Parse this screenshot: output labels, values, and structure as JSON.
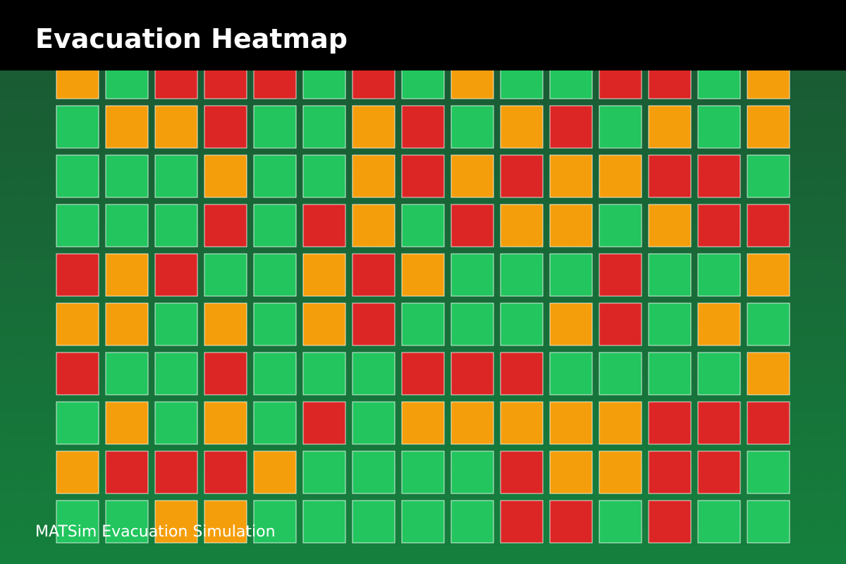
{
  "header": {
    "title": "Evacuation Heatmap"
  },
  "footer": {
    "text": "MATSim Evacuation Simulation"
  },
  "grid": {
    "cells": [
      [
        "#f59e0b",
        "#22c55e",
        "#dc2626",
        "#dc2626",
        "#dc2626",
        "#22c55e",
        "#dc2626",
        "#22c55e",
        "#f59e0b",
        "#22c55e",
        "#22c55e",
        "#dc2626",
        "#dc2626",
        "#22c55e",
        "#f59e0b"
      ],
      [
        "#22c55e",
        "#f59e0b",
        "#f59e0b",
        "#dc2626",
        "#22c55e",
        "#22c55e",
        "#f59e0b",
        "#dc2626",
        "#22c55e",
        "#f59e0b",
        "#dc2626",
        "#22c55e",
        "#f59e0b",
        "#22c55e",
        "#f59e0b"
      ],
      [
        "#22c55e",
        "#22c55e",
        "#22c55e",
        "#f59e0b",
        "#22c55e",
        "#22c55e",
        "#f59e0b",
        "#dc2626",
        "#f59e0b",
        "#dc2626",
        "#f59e0b",
        "#f59e0b",
        "#dc2626",
        "#dc2626",
        "#22c55e"
      ],
      [
        "#22c55e",
        "#22c55e",
        "#22c55e",
        "#dc2626",
        "#22c55e",
        "#dc2626",
        "#f59e0b",
        "#22c55e",
        "#dc2626",
        "#f59e0b",
        "#f59e0b",
        "#22c55e",
        "#f59e0b",
        "#dc2626",
        "#dc2626"
      ],
      [
        "#dc2626",
        "#f59e0b",
        "#dc2626",
        "#22c55e",
        "#22c55e",
        "#f59e0b",
        "#dc2626",
        "#f59e0b",
        "#22c55e",
        "#22c55e",
        "#22c55e",
        "#dc2626",
        "#22c55e",
        "#22c55e",
        "#f59e0b"
      ],
      [
        "#f59e0b",
        "#f59e0b",
        "#22c55e",
        "#f59e0b",
        "#22c55e",
        "#f59e0b",
        "#dc2626",
        "#22c55e",
        "#22c55e",
        "#22c55e",
        "#f59e0b",
        "#dc2626",
        "#22c55e",
        "#f59e0b",
        "#22c55e"
      ],
      [
        "#dc2626",
        "#22c55e",
        "#22c55e",
        "#dc2626",
        "#22c55e",
        "#22c55e",
        "#22c55e",
        "#dc2626",
        "#dc2626",
        "#dc2626",
        "#22c55e",
        "#22c55e",
        "#22c55e",
        "#22c55e",
        "#f59e0b"
      ],
      [
        "#22c55e",
        "#f59e0b",
        "#22c55e",
        "#f59e0b",
        "#22c55e",
        "#dc2626",
        "#22c55e",
        "#f59e0b",
        "#f59e0b",
        "#f59e0b",
        "#f59e0b",
        "#f59e0b",
        "#dc2626",
        "#dc2626",
        "#dc2626"
      ],
      [
        "#f59e0b",
        "#dc2626",
        "#dc2626",
        "#dc2626",
        "#f59e0b",
        "#22c55e",
        "#22c55e",
        "#22c55e",
        "#22c55e",
        "#dc2626",
        "#f59e0b",
        "#f59e0b",
        "#dc2626",
        "#dc2626",
        "#22c55e"
      ],
      [
        "#22c55e",
        "#22c55e",
        "#f59e0b",
        "#f59e0b",
        "#22c55e",
        "#22c55e",
        "#22c55e",
        "#22c55e",
        "#22c55e",
        "#dc2626",
        "#dc2626",
        "#22c55e",
        "#dc2626",
        "#22c55e",
        "#22c55e"
      ]
    ]
  }
}
